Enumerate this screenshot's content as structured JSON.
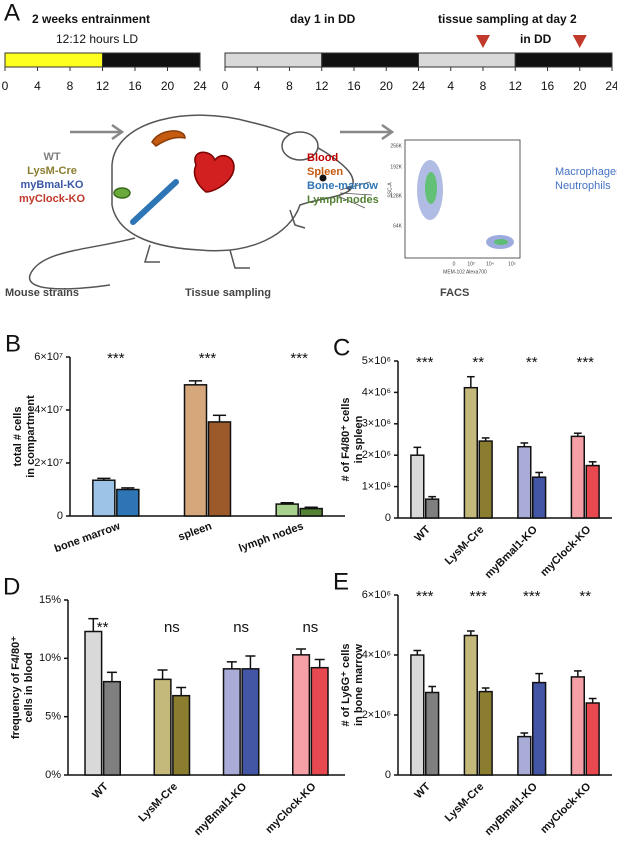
{
  "panel_a": {
    "letter": "A",
    "entrainment_title": "2 weeks entrainment",
    "entrainment_subtitle": "12:12 hours LD",
    "day1_title": "day 1 in DD",
    "sampling_title": "tissue sampling at day 2",
    "sampling_subtitle": "in DD",
    "left_timeline": {
      "xlim": [
        0,
        24
      ],
      "ticks": [
        0,
        4,
        8,
        12,
        16,
        20,
        24
      ],
      "segments": [
        {
          "from": 0,
          "to": 12,
          "color": "#ffff1e"
        },
        {
          "from": 12,
          "to": 24,
          "color": "#111111"
        }
      ]
    },
    "right_timeline": {
      "xlim": [
        0,
        48
      ],
      "ticks": [
        0,
        4,
        8,
        12,
        16,
        20,
        24,
        {
          "value": 28,
          "label": "4"
        },
        {
          "value": 32,
          "label": "8"
        },
        {
          "value": 36,
          "label": "12"
        },
        {
          "value": 40,
          "label": "16"
        },
        {
          "value": 44,
          "label": "20"
        },
        {
          "value": 48,
          "label": "24"
        }
      ],
      "segments": [
        {
          "from": 0,
          "to": 12,
          "color": "#d9d9d9"
        },
        {
          "from": 12,
          "to": 24,
          "color": "#111111"
        },
        {
          "from": 24,
          "to": 36,
          "color": "#d9d9d9"
        },
        {
          "from": 36,
          "to": 48,
          "color": "#111111"
        }
      ],
      "sampling_times": [
        32,
        44
      ],
      "marker_color": "#c0392b"
    },
    "strains": [
      {
        "label": "WT",
        "color": "#7f7f7f"
      },
      {
        "label": "LysM-Cre",
        "color": "#8b7d2f"
      },
      {
        "label": "myBmal-KO",
        "color": "#3a57a7"
      },
      {
        "label": "myClock-KO",
        "color": "#c0392b"
      }
    ],
    "tissues": [
      {
        "label": "Blood",
        "color": "#c00000"
      },
      {
        "label": "Spleen",
        "color": "#c55a11"
      },
      {
        "label": "Bone-marrow",
        "color": "#2e75b6"
      },
      {
        "label": "Lymph-nodes",
        "color": "#548235"
      }
    ],
    "cell_types": [
      "Macrophages",
      "Neutrophils"
    ],
    "mouse_strains_caption": "Mouse strains",
    "tissue_sampling_caption": "Tissue sampling",
    "facs_caption": "FACS",
    "facs": {
      "y_label": "SSC-A",
      "x_label": "MEM-102 Alexa700",
      "y_ticks": [
        "256K",
        "192K",
        "128K",
        "64K"
      ],
      "x_ticks": [
        "0",
        "10³",
        "10⁴",
        "10⁵"
      ]
    }
  },
  "chart_data": [
    {
      "type": "bar",
      "panel": "B",
      "ylabel": [
        "total # cells",
        "in compartment"
      ],
      "categories": [
        "bone marrow",
        "spleen",
        "lymph nodes"
      ],
      "series": [
        {
          "values": [
            13500000,
            49500000,
            4500000
          ],
          "errors": [
            700000,
            1500000,
            500000
          ],
          "colors": [
            "#9dc3e6",
            "#d6a77a",
            "#a9d18e"
          ]
        },
        {
          "values": [
            10000000,
            35500000,
            2800000
          ],
          "errors": [
            600000,
            2500000,
            500000
          ],
          "colors": [
            "#2e75b6",
            "#9c5a2a",
            "#548235"
          ]
        }
      ],
      "annotations": [
        "***",
        "***",
        "***"
      ],
      "ylim": [
        0,
        60000000
      ],
      "yticks": [
        0,
        {
          "value": 20000000,
          "label": "2×10⁷"
        },
        {
          "value": 40000000,
          "label": "4×10⁷"
        },
        {
          "value": 60000000,
          "label": "6×10⁷"
        }
      ]
    },
    {
      "type": "bar",
      "panel": "C",
      "ylabel": [
        "# of F4/80⁺ cells",
        "in spleen"
      ],
      "categories": [
        "WT",
        "LysM-Cre",
        "myBmal1-KO",
        "myClock-KO"
      ],
      "series": [
        {
          "values": [
            2000000,
            4150000,
            2270000,
            2600000
          ],
          "errors": [
            250000,
            350000,
            120000,
            100000
          ],
          "colors": [
            "#d9d9d9",
            "#c4b97a",
            "#a9acd6",
            "#f4a0a6"
          ]
        },
        {
          "values": [
            600000,
            2450000,
            1300000,
            1670000
          ],
          "errors": [
            80000,
            100000,
            150000,
            120000
          ],
          "colors": [
            "#7f7f7f",
            "#8b7d2f",
            "#4355a5",
            "#e8484f"
          ]
        }
      ],
      "annotations": [
        "***",
        "**",
        "**",
        "***"
      ],
      "ylim": [
        0,
        5000000
      ],
      "yticks": [
        0,
        {
          "value": 1000000,
          "label": "1×10⁶"
        },
        {
          "value": 2000000,
          "label": "2×10⁶"
        },
        {
          "value": 3000000,
          "label": "3×10⁶"
        },
        {
          "value": 4000000,
          "label": "4×10⁶"
        },
        {
          "value": 5000000,
          "label": "5×10⁶"
        }
      ]
    },
    {
      "type": "bar",
      "panel": "D",
      "ylabel": [
        "frequency of F4/80⁺",
        "cells in blood"
      ],
      "categories": [
        "WT",
        "LysM-Cre",
        "myBmal1-KO",
        "myClock-KO"
      ],
      "series": [
        {
          "values": [
            12.3,
            8.2,
            9.1,
            10.3
          ],
          "errors": [
            1.1,
            0.8,
            0.6,
            0.5
          ],
          "colors": [
            "#d9d9d9",
            "#c4b97a",
            "#a9acd6",
            "#f4a0a6"
          ]
        },
        {
          "values": [
            8.0,
            6.8,
            9.1,
            9.2
          ],
          "errors": [
            0.8,
            0.7,
            1.1,
            0.7
          ],
          "colors": [
            "#7f7f7f",
            "#8b7d2f",
            "#4355a5",
            "#e8484f"
          ]
        }
      ],
      "annotations": [
        "**",
        "ns",
        "ns",
        "ns"
      ],
      "ylim": [
        0,
        15
      ],
      "yticks": [
        {
          "value": 0,
          "label": "0%"
        },
        {
          "value": 5,
          "label": "5%"
        },
        {
          "value": 10,
          "label": "10%"
        },
        {
          "value": 15,
          "label": "15%"
        }
      ]
    },
    {
      "type": "bar",
      "panel": "E",
      "ylabel": [
        "# of Ly6G⁺ cells",
        "in bone marrow"
      ],
      "categories": [
        "WT",
        "LysM-Cre",
        "myBmal1-KO",
        "myClock-KO"
      ],
      "series": [
        {
          "values": [
            4000000,
            4650000,
            1280000,
            3270000
          ],
          "errors": [
            150000,
            150000,
            120000,
            200000
          ],
          "colors": [
            "#d9d9d9",
            "#c4b97a",
            "#a9acd6",
            "#f4a0a6"
          ]
        },
        {
          "values": [
            2750000,
            2780000,
            3080000,
            2400000
          ],
          "errors": [
            200000,
            120000,
            300000,
            150000
          ],
          "colors": [
            "#7f7f7f",
            "#8b7d2f",
            "#4355a5",
            "#e8484f"
          ]
        }
      ],
      "annotations": [
        "***",
        "***",
        "***",
        "**"
      ],
      "ylim": [
        0,
        6000000
      ],
      "yticks": [
        0,
        {
          "value": 2000000,
          "label": "2×10⁶"
        },
        {
          "value": 4000000,
          "label": "4×10⁶"
        },
        {
          "value": 6000000,
          "label": "6×10⁶"
        }
      ]
    }
  ]
}
